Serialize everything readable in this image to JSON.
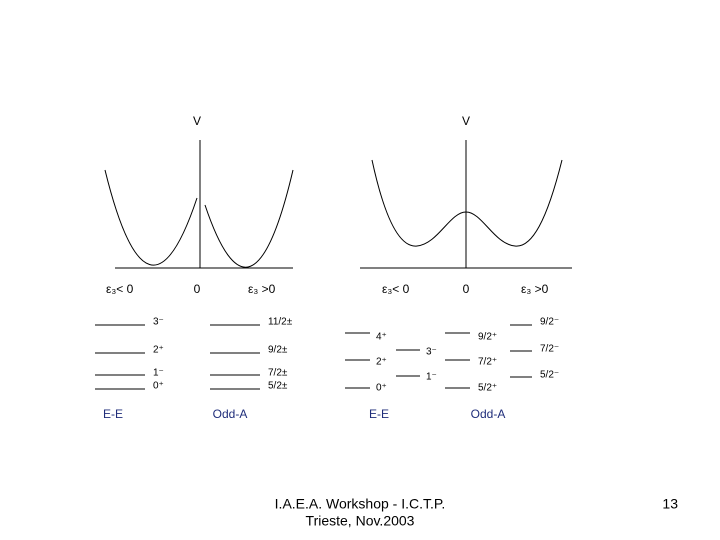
{
  "plots": [
    {
      "potential_label": "V",
      "origin_label": "0",
      "left_label": "ε₃< 0",
      "right_label": "ε₃ >0"
    },
    {
      "potential_label": "V",
      "origin_label": "0",
      "left_label": "ε₃< 0",
      "right_label": "ε₃ >0"
    }
  ],
  "spectra": [
    {
      "title": "E-E",
      "levels": [
        "3⁻",
        "2⁺",
        "1⁻",
        "0⁺"
      ]
    },
    {
      "title": "Odd-A",
      "levels": [
        "11/2±",
        "9/2±",
        "7/2±",
        "5/2±"
      ]
    },
    {
      "title": "E-E",
      "levels": [
        "4⁺",
        "2⁺",
        "0⁺",
        "3⁻",
        "1⁻"
      ]
    },
    {
      "title": "Odd-A",
      "levels": [
        "9/2⁺",
        "7/2⁺",
        "5/2⁺",
        "9/2⁻",
        "7/2⁻",
        "5/2⁻"
      ]
    }
  ],
  "footer": {
    "lines": [
      "I.A.E.A. Workshop - I.C.T.P.",
      "Trieste, Nov.2003"
    ],
    "page_number": "13"
  }
}
